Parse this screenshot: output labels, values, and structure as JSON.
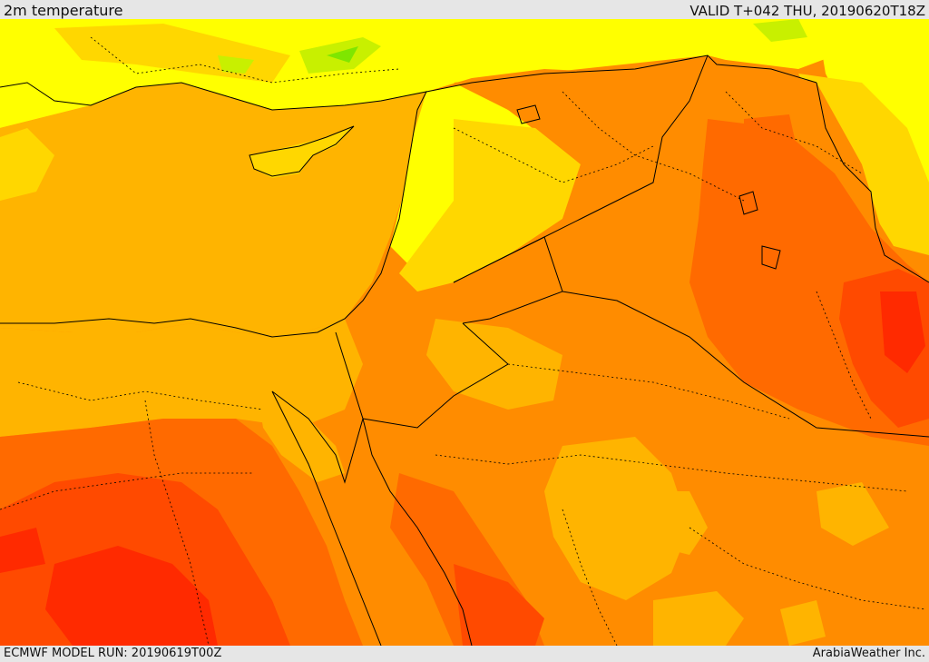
{
  "header": {
    "title": "2m temperature",
    "valid_time": "VALID T+042 THU, 20190620T18Z"
  },
  "footer": {
    "model_run": "ECMWF MODEL RUN: 20190619T00Z",
    "credit": "ArabiaWeather Inc."
  },
  "palette": {
    "light_green": "#7fe600",
    "yellow_green": "#c8f000",
    "yellow": "#ffff00",
    "gold": "#ffd700",
    "amber": "#ffb400",
    "orange": "#ff8c00",
    "dark_orange": "#ff6a00",
    "red_orange": "#ff4a00",
    "red": "#ff2a00",
    "border": "#000000"
  }
}
